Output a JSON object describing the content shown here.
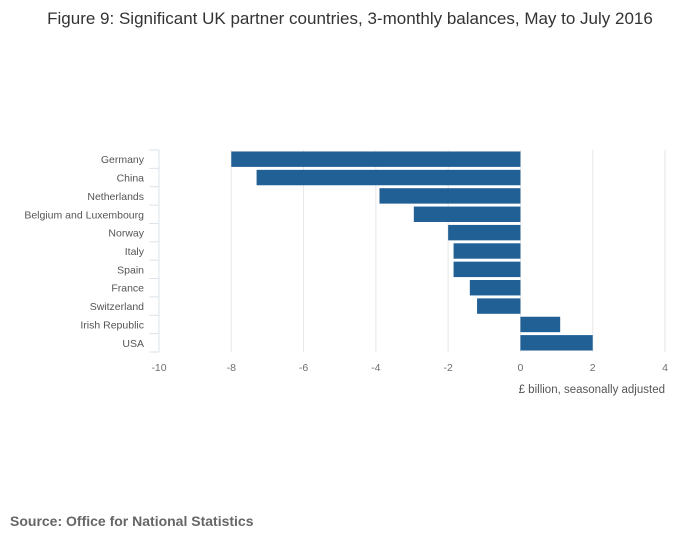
{
  "chart_data": {
    "type": "bar",
    "orientation": "horizontal",
    "title": "Figure 9: Significant UK partner countries, 3-monthly balances, May to July 2016",
    "xlabel": "£ billion, seasonally adjusted",
    "ylabel": "",
    "xlim": [
      -10,
      4
    ],
    "x_ticks": [
      -10,
      -8,
      -6,
      -4,
      -2,
      0,
      2,
      4
    ],
    "categories": [
      "Germany",
      "China",
      "Netherlands",
      "Belgium and Luxembourg",
      "Norway",
      "Italy",
      "Spain",
      "France",
      "Switzerland",
      "Irish Republic",
      "USA"
    ],
    "values": [
      -8.0,
      -7.3,
      -3.9,
      -2.95,
      -2.0,
      -1.85,
      -1.85,
      -1.4,
      -1.2,
      1.1,
      2.0
    ],
    "bar_color": "#206095",
    "grid": true
  },
  "source": "Source: Office for National Statistics"
}
